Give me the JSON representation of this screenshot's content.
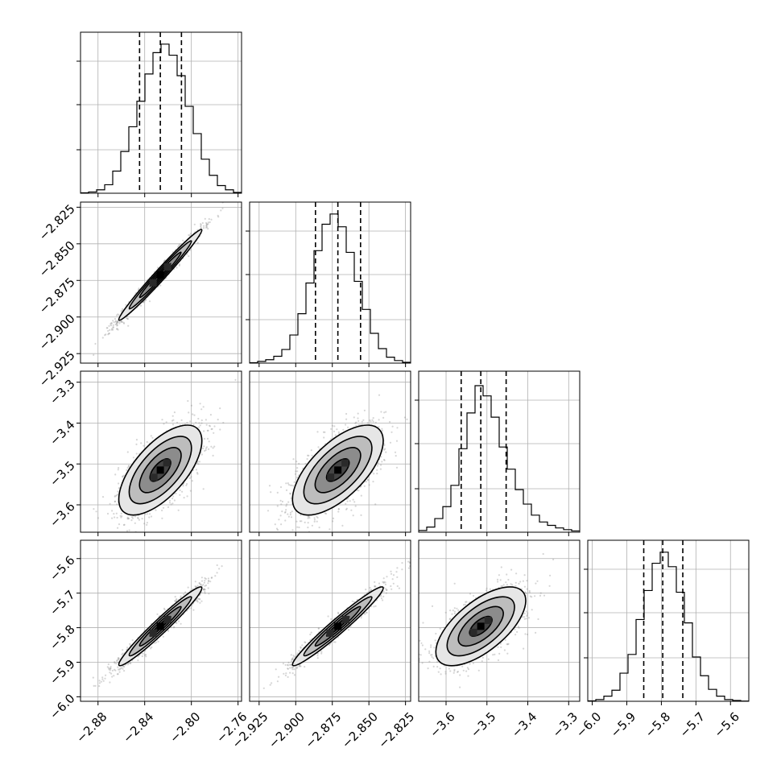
{
  "chart_data": {
    "type": "corner",
    "n_params": 4,
    "grid": true,
    "params": [
      {
        "index": 0,
        "range": [
          -2.895,
          -2.757
        ],
        "ticks": [
          -2.88,
          -2.84,
          -2.8,
          -2.76
        ],
        "tick_labels": [
          "−2.88",
          "−2.84",
          "−2.80",
          "−2.76"
        ],
        "quantiles": [
          -2.8444,
          -2.8266,
          -2.8085
        ]
      },
      {
        "index": 1,
        "range": [
          -2.9315,
          -2.8215
        ],
        "ticks": [
          -2.925,
          -2.9,
          -2.875,
          -2.85,
          -2.825
        ],
        "tick_labels": [
          "−2.925",
          "−2.900",
          "−2.875",
          "−2.850",
          "−2.825"
        ],
        "quantiles": [
          -2.8865,
          -2.8712,
          -2.8557
        ]
      },
      {
        "index": 2,
        "range": [
          -3.667,
          -3.273
        ],
        "ticks": [
          -3.6,
          -3.5,
          -3.4,
          -3.3
        ],
        "tick_labels": [
          "−3.6",
          "−3.5",
          "−3.4",
          "−3.3"
        ],
        "quantiles": [
          -3.563,
          -3.515,
          -3.453
        ]
      },
      {
        "index": 3,
        "range": [
          -6.013,
          -5.547
        ],
        "ticks": [
          -6.0,
          -5.9,
          -5.8,
          -5.7,
          -5.6
        ],
        "tick_labels": [
          "−6.0",
          "−5.9",
          "−5.8",
          "−5.7",
          "−5.6"
        ],
        "quantiles": [
          -5.851,
          -5.796,
          -5.738
        ]
      }
    ],
    "histograms": [
      {
        "param": 0,
        "edges": [
          -2.895,
          -2.8881,
          -2.8812,
          -2.8743,
          -2.8674,
          -2.8605,
          -2.8536,
          -2.8467,
          -2.8398,
          -2.8329,
          -2.826,
          -2.8191,
          -2.8122,
          -2.8053,
          -2.7984,
          -2.7915,
          -2.7846,
          -2.7777,
          -2.7708,
          -2.7639,
          -2.757
        ],
        "counts": [
          0.5,
          1.5,
          4,
          10,
          26,
          49,
          78,
          108,
          140,
          165,
          175,
          162,
          138,
          102,
          70,
          40,
          21,
          9,
          4,
          1
        ]
      },
      {
        "param": 1,
        "edges": [
          -2.9315,
          -2.926,
          -2.9205,
          -2.915,
          -2.9095,
          -2.904,
          -2.8985,
          -2.893,
          -2.8875,
          -2.882,
          -2.8765,
          -2.871,
          -2.8655,
          -2.86,
          -2.8545,
          -2.849,
          -2.8435,
          -2.838,
          -2.8325,
          -2.827,
          -2.8215
        ],
        "counts": [
          0.5,
          2,
          4,
          8,
          16,
          33,
          58,
          94,
          132,
          163,
          175,
          160,
          130,
          96,
          63,
          35,
          17,
          7,
          3,
          1
        ]
      },
      {
        "param": 2,
        "edges": [
          -3.667,
          -3.6473,
          -3.6276,
          -3.6079,
          -3.5882,
          -3.5685,
          -3.5488,
          -3.5291,
          -3.5094,
          -3.4897,
          -3.47,
          -3.4503,
          -3.4306,
          -3.4109,
          -3.3912,
          -3.3715,
          -3.3518,
          -3.3321,
          -3.3124,
          -3.2927,
          -3.273
        ],
        "counts": [
          2,
          6,
          16,
          30,
          55,
          98,
          140,
          172,
          160,
          135,
          100,
          74,
          50,
          33,
          20,
          12,
          8,
          5,
          3,
          1.5
        ]
      },
      {
        "param": 3,
        "edges": [
          -6.013,
          -5.9897,
          -5.9664,
          -5.9431,
          -5.9198,
          -5.8965,
          -5.8732,
          -5.8499,
          -5.8266,
          -5.8033,
          -5.78,
          -5.7567,
          -5.7334,
          -5.7101,
          -5.6868,
          -5.6635,
          -5.6402,
          -5.6169,
          -5.5936,
          -5.5703,
          -5.547
        ],
        "counts": [
          0.5,
          2,
          6,
          13,
          33,
          55,
          96,
          130,
          162,
          175,
          158,
          128,
          92,
          52,
          30,
          14,
          6,
          2,
          1,
          0.3
        ]
      }
    ],
    "pairs": [
      {
        "x_param": 0,
        "y_param": 1,
        "center": [
          -2.8266,
          -2.8712
        ],
        "sd": [
          0.0178,
          0.0155
        ],
        "rho": 0.985
      },
      {
        "x_param": 0,
        "y_param": 2,
        "center": [
          -2.8266,
          -3.515
        ],
        "sd": [
          0.0178,
          0.055
        ],
        "rho": 0.65
      },
      {
        "x_param": 1,
        "y_param": 2,
        "center": [
          -2.8712,
          -3.515
        ],
        "sd": [
          0.0155,
          0.055
        ],
        "rho": 0.65
      },
      {
        "x_param": 0,
        "y_param": 3,
        "center": [
          -2.8266,
          -5.796
        ],
        "sd": [
          0.0178,
          0.057
        ],
        "rho": 0.97
      },
      {
        "x_param": 1,
        "y_param": 3,
        "center": [
          -2.8712,
          -5.796
        ],
        "sd": [
          0.0155,
          0.057
        ],
        "rho": 0.97
      },
      {
        "x_param": 2,
        "y_param": 3,
        "center": [
          -3.515,
          -5.796
        ],
        "sd": [
          0.055,
          0.057
        ],
        "rho": 0.65
      }
    ],
    "contour_levels_sigma": [
      0.5,
      1.0,
      1.5,
      2.0
    ]
  }
}
